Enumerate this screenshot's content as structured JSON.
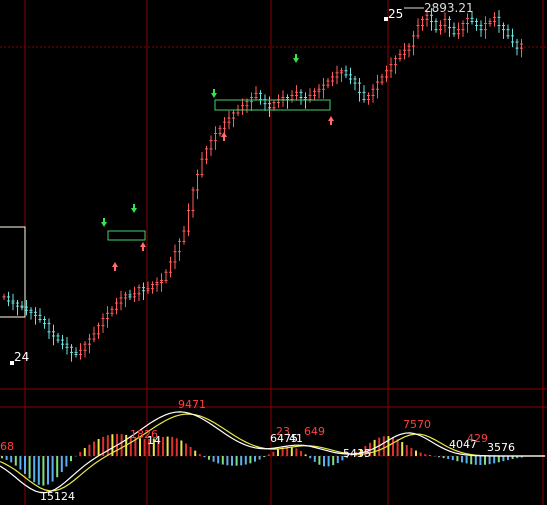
{
  "colors": {
    "background": "#000000",
    "up_candle": "#ff5b5b",
    "down_candle": "#6fe0e0",
    "grid_red": "#8a0000",
    "box_green": "#3fd06e",
    "box_white": "#ffffe0",
    "arrow_green": "#37e24d",
    "arrow_red": "#ff6a6a",
    "fast_line": "#ffffff",
    "slow_line": "#e8e84a",
    "macd_pos": "#e03030",
    "macd_neg": "#5ab0f0"
  },
  "chart_data": {
    "type": "candlestick",
    "title": "",
    "price_annotations": {
      "high_label": "2893.21",
      "count_high": "25",
      "count_low": "24"
    },
    "price_series_close": [
      2616,
      2612,
      2610,
      2607,
      2606,
      2603,
      2601,
      2598,
      2594,
      2590,
      2582,
      2578,
      2574,
      2570,
      2567,
      2562,
      2560,
      2564,
      2570,
      2575,
      2580,
      2588,
      2595,
      2600,
      2604,
      2610,
      2615,
      2618,
      2616,
      2619,
      2625,
      2622,
      2624,
      2628,
      2630,
      2632,
      2640,
      2650,
      2660,
      2670,
      2680,
      2700,
      2720,
      2735,
      2750,
      2760,
      2768,
      2775,
      2780,
      2786,
      2790,
      2795,
      2798,
      2802,
      2806,
      2810,
      2814,
      2808,
      2804,
      2800,
      2805,
      2808,
      2810,
      2808,
      2812,
      2815,
      2810,
      2808,
      2812,
      2816,
      2818,
      2822,
      2826,
      2830,
      2834,
      2836,
      2832,
      2828,
      2824,
      2815,
      2808,
      2812,
      2818,
      2825,
      2830,
      2836,
      2842,
      2848,
      2852,
      2856,
      2860,
      2870,
      2880,
      2886,
      2890,
      2884,
      2876,
      2880,
      2886,
      2878,
      2872,
      2876,
      2882,
      2887,
      2884,
      2880,
      2876,
      2882,
      2884,
      2888,
      2880,
      2876,
      2870,
      2864,
      2858,
      2862
    ],
    "indicator_labels": [
      {
        "text": "68",
        "color": "red"
      },
      {
        "text": "15124",
        "color": "white"
      },
      {
        "text": "1826",
        "color": "red"
      },
      {
        "text": "14",
        "color": "white"
      },
      {
        "text": "9471",
        "color": "red"
      },
      {
        "text": "23",
        "color": "red"
      },
      {
        "text": "6475",
        "color": "white"
      },
      {
        "text": "41",
        "color": "white"
      },
      {
        "text": "649",
        "color": "red"
      },
      {
        "text": "5435",
        "color": "white"
      },
      {
        "text": "7570",
        "color": "red"
      },
      {
        "text": "4047",
        "color": "white"
      },
      {
        "text": "429",
        "color": "red"
      },
      {
        "text": "3576",
        "color": "white"
      }
    ]
  }
}
